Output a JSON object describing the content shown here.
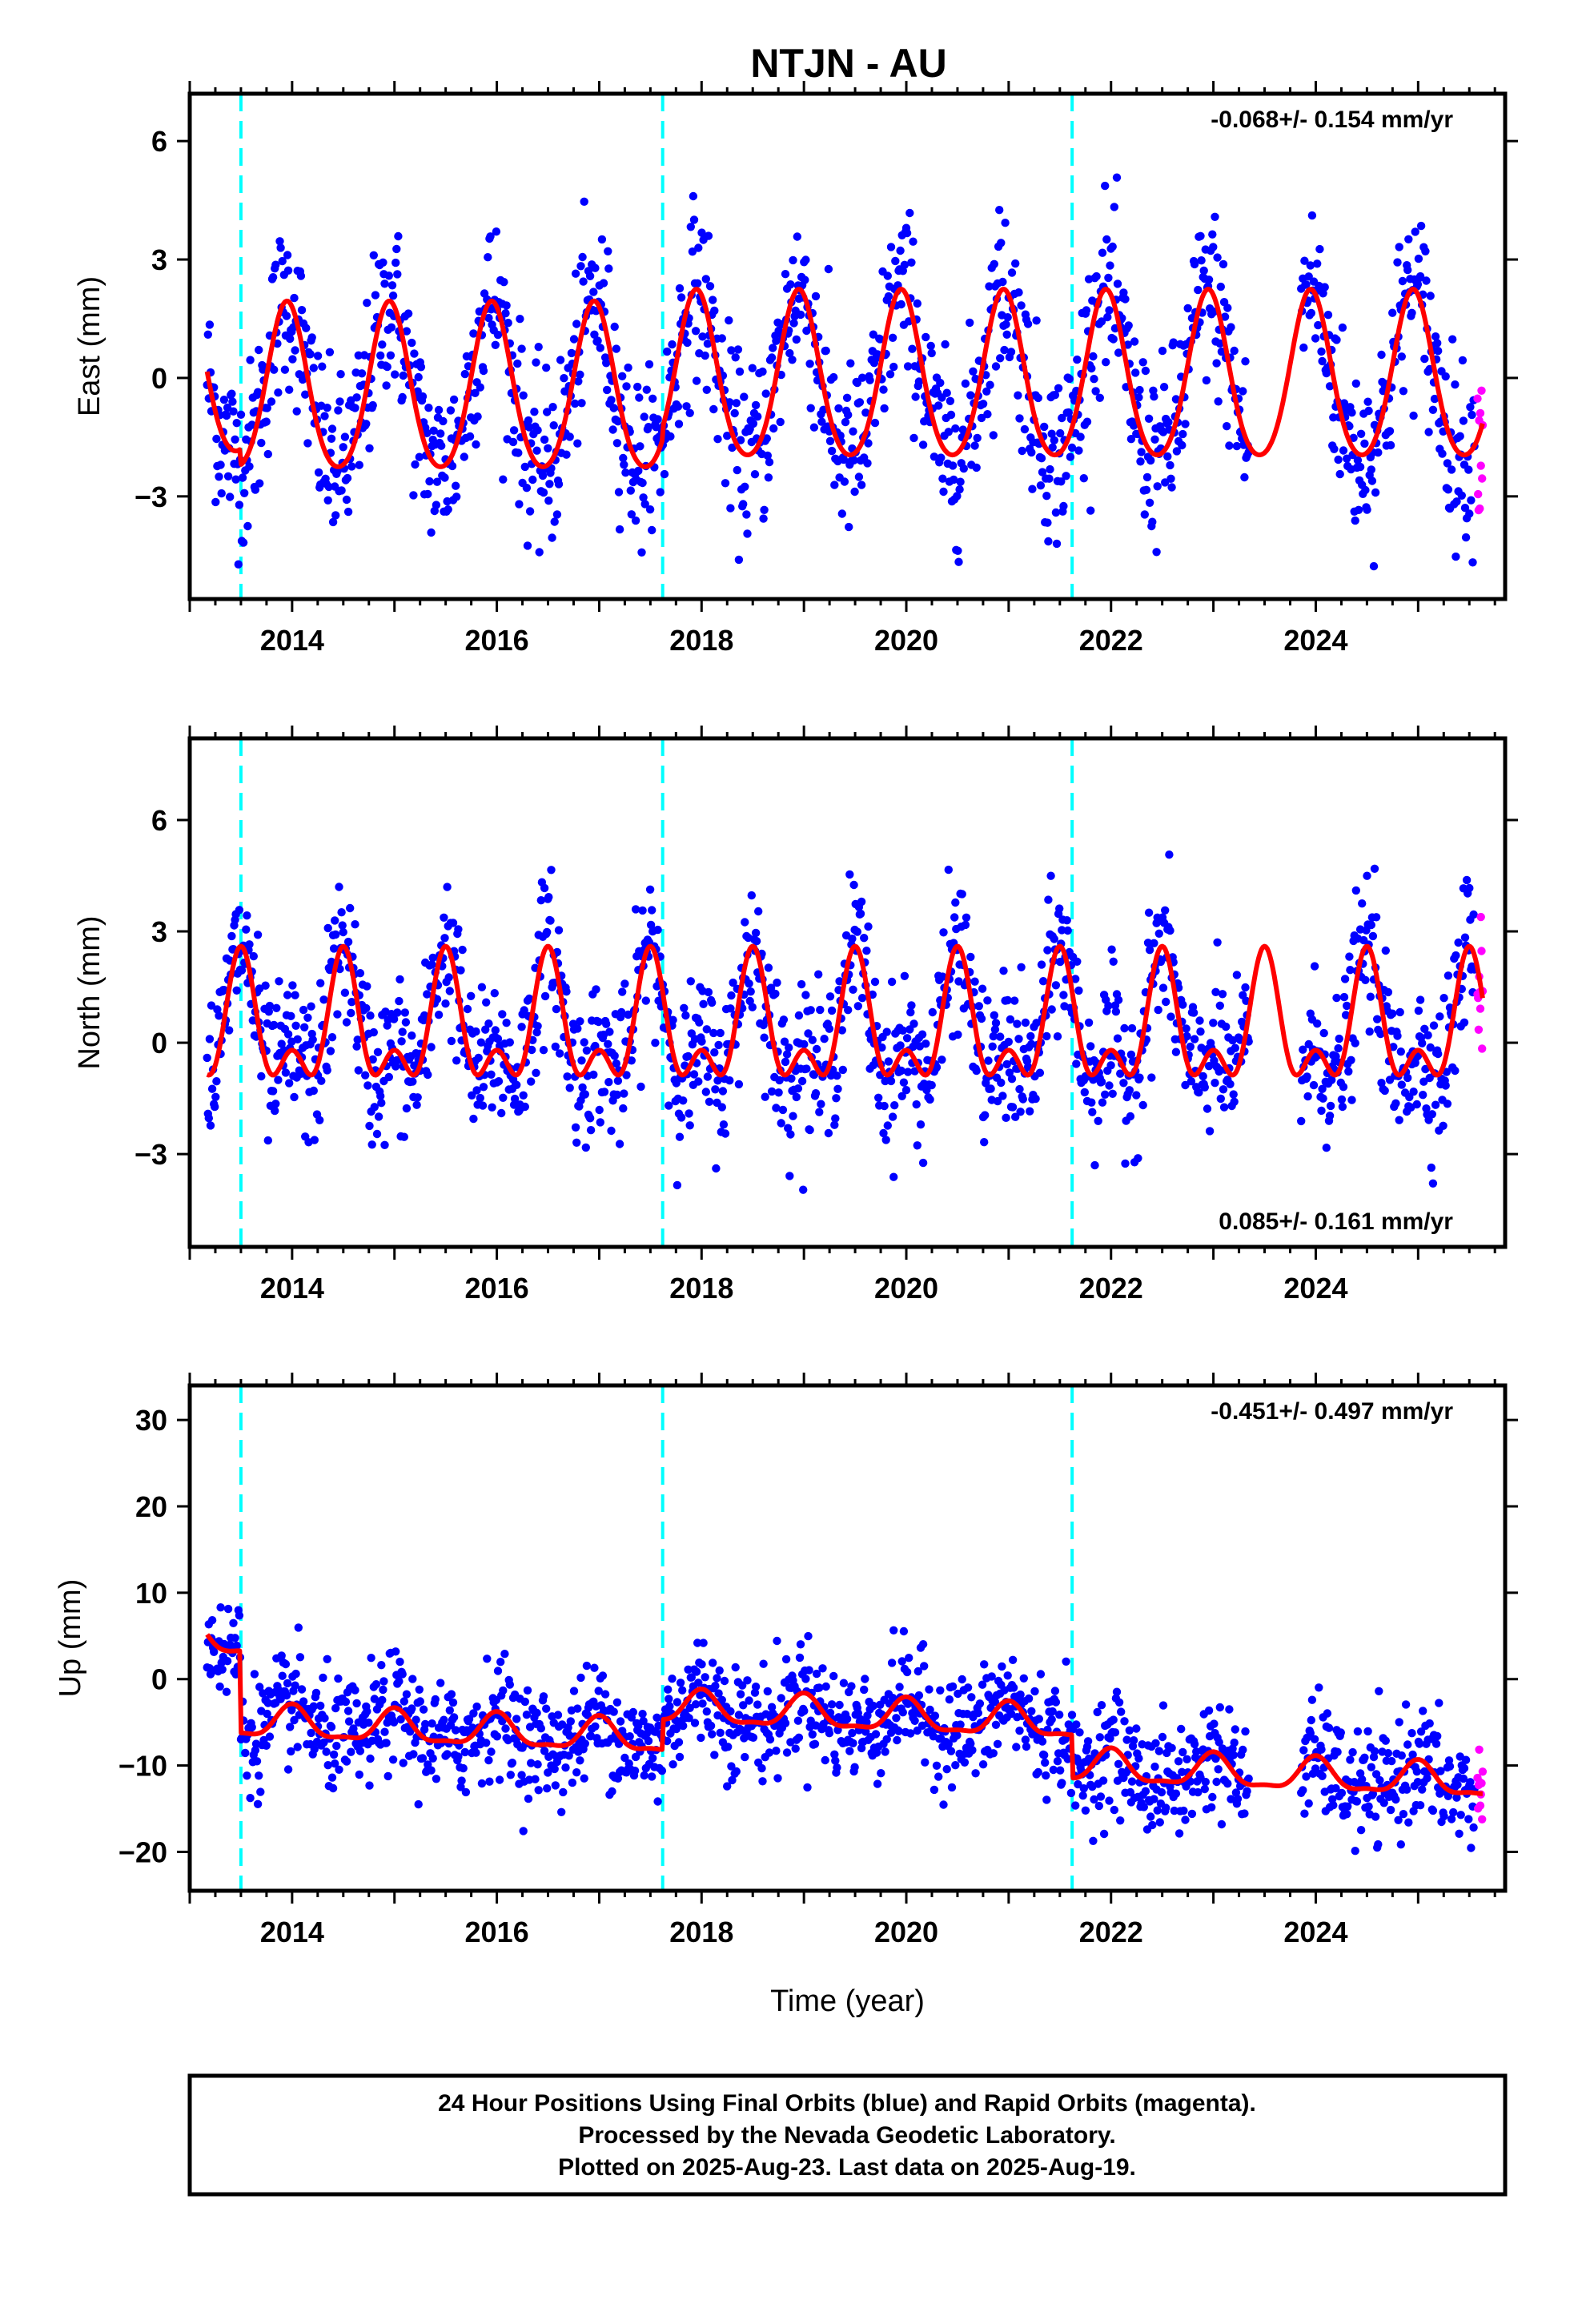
{
  "title": "NTJN - AU",
  "footer": {
    "line1": "24 Hour Positions Using Final Orbits (blue) and Rapid Orbits (magenta).",
    "line2": "Processed by the Nevada Geodetic Laboratory.",
    "line3": "Plotted on 2025-Aug-23. Last data on 2025-Aug-19."
  },
  "colors": {
    "final_orbits": "#0000ff",
    "rapid_orbits": "#ff00ff",
    "model_fit": "#ff0000",
    "offsets": "#00ffff"
  },
  "chart_data": [
    {
      "type": "scatter",
      "panel": "east",
      "ylabel": "East (mm)",
      "xlabel": "",
      "rate_text": "-0.068+/- 0.154 mm/yr",
      "rate_position": "top-right",
      "xlim": [
        2013.0,
        2025.85
      ],
      "ylim": [
        -5.6,
        7.2
      ],
      "x_ticks": [
        2014,
        2016,
        2018,
        2020,
        2022,
        2024
      ],
      "y_ticks": [
        -3,
        0,
        3,
        6
      ],
      "y_tick_labels": [
        "−3",
        "0",
        "3",
        "6"
      ],
      "offset_epochs": [
        2013.5,
        2017.62,
        2021.62
      ],
      "data_range": [
        2013.17,
        2025.55
      ],
      "rapid_range": [
        2025.58,
        2025.63
      ],
      "model": {
        "mean": 0.0,
        "annual_amp": 2.1,
        "annual_peak": 2013.95,
        "semiannual_amp": 0.25,
        "semiannual_peak": 2013.95,
        "scatter": 1.1,
        "offsets": [
          -0.4,
          0.3,
          0.0
        ]
      },
      "approx_range_note": "approx. -5 to 6 mm, annual amplitude ~2 mm"
    },
    {
      "type": "scatter",
      "panel": "north",
      "ylabel": "North (mm)",
      "xlabel": "",
      "rate_text": "0.085+/- 0.161 mm/yr",
      "rate_position": "bottom-right",
      "xlim": [
        2013.0,
        2025.85
      ],
      "ylim": [
        -5.5,
        8.2
      ],
      "x_ticks": [
        2014,
        2016,
        2018,
        2020,
        2022,
        2024
      ],
      "y_ticks": [
        -3,
        0,
        3,
        6
      ],
      "y_tick_labels": [
        "−3",
        "0",
        "3",
        "6"
      ],
      "offset_epochs": [
        2013.5,
        2017.62,
        2021.62
      ],
      "data_range": [
        2013.17,
        2025.55
      ],
      "rapid_range": [
        2025.58,
        2025.63
      ],
      "model": {
        "mean": 0.3,
        "annual_amp": 1.4,
        "annual_peak": 2013.5,
        "semiannual_amp": 0.9,
        "semiannual_peak": 2013.5,
        "scatter": 1.0,
        "offsets": [
          0.0,
          0.0,
          0.0
        ]
      },
      "approx_range_note": "approx. -5 to 8 mm, peaks ~3 mm mid-year"
    },
    {
      "type": "scatter",
      "panel": "up",
      "ylabel": "Up (mm)",
      "xlabel": "Time (year)",
      "rate_text": "-0.451+/- 0.497 mm/yr",
      "rate_position": "top-right",
      "xlim": [
        2013.0,
        2025.85
      ],
      "ylim": [
        -24.5,
        34.0
      ],
      "x_ticks": [
        2014,
        2016,
        2018,
        2020,
        2022,
        2024
      ],
      "y_ticks": [
        -20,
        -10,
        0,
        10,
        20,
        30
      ],
      "y_tick_labels": [
        "−20",
        "−10",
        "0",
        "10",
        "20",
        "30"
      ],
      "offset_epochs": [
        2013.5,
        2017.62,
        2021.62
      ],
      "data_range": [
        2013.17,
        2025.55
      ],
      "rapid_range": [
        2025.58,
        2025.63
      ],
      "model": {
        "mean": 2.0,
        "annual_amp": 1.8,
        "annual_peak": 2014.0,
        "semiannual_amp": 0.6,
        "semiannual_peak": 2014.0,
        "scatter": 3.2,
        "offsets": [
          -9.5,
          3.5,
          -5.0
        ],
        "trend": -0.45
      },
      "approx_range_note": "approx. -22 to 33 mm"
    }
  ]
}
